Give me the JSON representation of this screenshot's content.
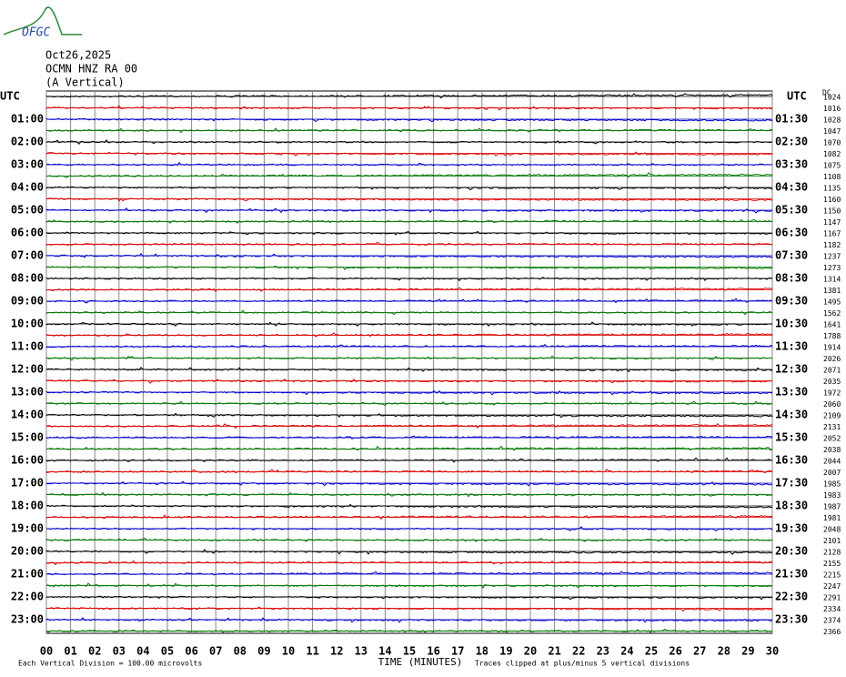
{
  "logo": "OFGC",
  "header": {
    "date": "Oct26,2025",
    "station": "OCMN HNZ RA 00",
    "component": "(A Vertical)",
    "dc": "DC"
  },
  "left_labels": [
    "UTC",
    "01:00",
    "02:00",
    "03:00",
    "04:00",
    "05:00",
    "06:00",
    "07:00",
    "08:00",
    "09:00",
    "10:00",
    "11:00",
    "12:00",
    "13:00",
    "14:00",
    "15:00",
    "16:00",
    "17:00",
    "18:00",
    "19:00",
    "20:00",
    "21:00",
    "22:00",
    "23:00"
  ],
  "right_labels": [
    "UTC",
    "01:30",
    "02:30",
    "03:30",
    "04:30",
    "05:30",
    "06:30",
    "07:30",
    "08:30",
    "09:30",
    "10:30",
    "11:30",
    "12:30",
    "13:30",
    "14:30",
    "15:30",
    "16:30",
    "17:30",
    "18:30",
    "19:30",
    "20:30",
    "21:30",
    "22:30",
    "23:30"
  ],
  "right_values": [
    "1024",
    "1016",
    "1028",
    "1047",
    "1070",
    "1082",
    "1075",
    "1108",
    "1135",
    "1160",
    "1150",
    "1147",
    "1167",
    "1182",
    "1237",
    "1273",
    "1314",
    "1381",
    "1495",
    "1562",
    "1641",
    "1788",
    "1914",
    "2026",
    "2071",
    "2035",
    "1972",
    "2060",
    "2109",
    "2131",
    "2052",
    "2038",
    "2044",
    "2007",
    "1985",
    "1983",
    "1987",
    "1981",
    "2048",
    "2101",
    "2128",
    "2155",
    "2215",
    "2247",
    "2291",
    "2334",
    "2374",
    "2366"
  ],
  "x_labels": [
    "00",
    "01",
    "02",
    "03",
    "04",
    "05",
    "06",
    "07",
    "08",
    "09",
    "10",
    "11",
    "12",
    "13",
    "14",
    "15",
    "16",
    "17",
    "18",
    "19",
    "20",
    "21",
    "22",
    "23",
    "24",
    "25",
    "26",
    "27",
    "28",
    "29",
    "30"
  ],
  "footer": {
    "scale": "Each Vertical Division =  100.00 microvolts",
    "x_title": "TIME (MINUTES)",
    "clip": "Traces clipped at plus/minus 5 vertical divisions"
  }
}
